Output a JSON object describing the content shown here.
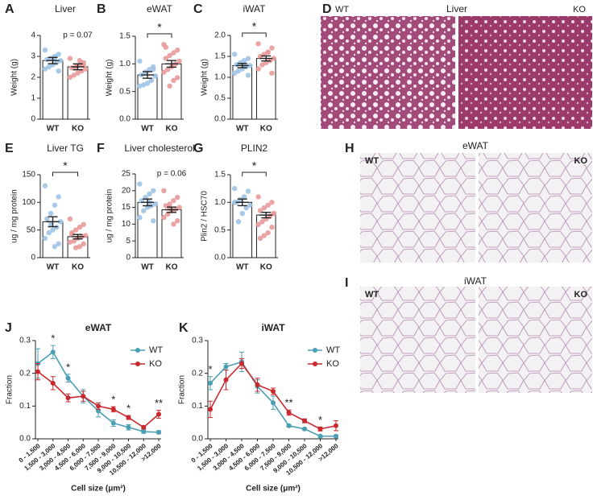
{
  "chart_data": [
    {
      "type": "bar",
      "panel": "A",
      "title": "Liver",
      "ylabel": "Weight (g)",
      "categories": [
        "WT",
        "KO"
      ],
      "values": [
        2.8,
        2.5
      ],
      "errors": [
        0.15,
        0.14
      ],
      "colors": [
        "#9ec3e6",
        "#e89a9a"
      ],
      "points": [
        [
          3.3,
          3.1,
          3.0,
          2.9,
          2.85,
          2.8,
          2.7,
          2.6,
          2.5,
          2.4,
          2.3,
          2.9
        ],
        [
          2.9,
          2.7,
          2.6,
          2.5,
          2.45,
          2.4,
          2.3,
          2.2,
          2.1,
          2.0,
          2.6,
          2.8,
          2.5
        ]
      ],
      "ylim": [
        0,
        4
      ],
      "yticks": [
        0,
        1,
        2,
        3,
        4
      ],
      "annotation": "p = 0.07"
    },
    {
      "type": "bar",
      "panel": "B",
      "title": "eWAT",
      "ylabel": "Weight (g)",
      "categories": [
        "WT",
        "KO"
      ],
      "values": [
        0.8,
        1.0
      ],
      "errors": [
        0.06,
        0.06
      ],
      "colors": [
        "#9ec3e6",
        "#e89a9a"
      ],
      "points": [
        [
          1.05,
          0.95,
          0.9,
          0.85,
          0.8,
          0.78,
          0.7,
          0.65,
          0.62,
          0.6,
          0.9
        ],
        [
          1.35,
          1.25,
          1.2,
          1.15,
          1.1,
          1.05,
          1.0,
          0.95,
          0.9,
          0.85,
          0.75,
          0.7,
          0.6,
          1.3
        ]
      ],
      "ylim": [
        0,
        1.5
      ],
      "yticks": [
        {
          "value": 0,
          "label": "0.0"
        },
        0.5,
        {
          "value": 1,
          "label": "1.0"
        },
        1.5
      ],
      "significance": "*"
    },
    {
      "type": "bar",
      "panel": "C",
      "title": "iWAT",
      "ylabel": "Weight (g)",
      "categories": [
        "WT",
        "KO"
      ],
      "values": [
        1.28,
        1.45
      ],
      "errors": [
        0.05,
        0.06
      ],
      "colors": [
        "#9ec3e6",
        "#e89a9a"
      ],
      "points": [
        [
          1.55,
          1.45,
          1.4,
          1.35,
          1.3,
          1.28,
          1.25,
          1.2,
          1.15,
          1.1,
          1.05,
          1.3
        ],
        [
          1.8,
          1.7,
          1.6,
          1.55,
          1.5,
          1.45,
          1.4,
          1.35,
          1.3,
          1.2,
          1.1,
          1.6
        ]
      ],
      "ylim": [
        0,
        2
      ],
      "yticks": [
        {
          "value": 0,
          "label": "0.0"
        },
        0.5,
        {
          "value": 1,
          "label": "1.0"
        },
        1.5,
        {
          "value": 2,
          "label": "2.0"
        }
      ],
      "significance": "*"
    },
    {
      "type": "bar",
      "panel": "E",
      "title": "Liver TG",
      "ylabel": "ug / mg protein",
      "categories": [
        "WT",
        "KO"
      ],
      "values": [
        65,
        38
      ],
      "errors": [
        9,
        4
      ],
      "colors": [
        "#9ec3e6",
        "#e89a9a"
      ],
      "points": [
        [
          130,
          110,
          95,
          80,
          70,
          65,
          55,
          50,
          45,
          35,
          25,
          20,
          60
        ],
        [
          70,
          60,
          55,
          50,
          45,
          40,
          38,
          35,
          30,
          28,
          25,
          20,
          18,
          42
        ]
      ],
      "ylim": [
        0,
        150
      ],
      "yticks": [
        0,
        50,
        100,
        150
      ],
      "significance": "*"
    },
    {
      "type": "bar",
      "panel": "F",
      "title": "Liver cholesterol",
      "ylabel": "ug / mg protein",
      "categories": [
        "WT",
        "KO"
      ],
      "values": [
        16.5,
        14.3
      ],
      "errors": [
        1.0,
        0.8
      ],
      "colors": [
        "#9ec3e6",
        "#e89a9a"
      ],
      "points": [
        [
          22,
          20,
          19,
          18,
          17,
          16,
          15.5,
          15,
          14,
          12,
          11,
          16.5
        ],
        [
          20,
          18,
          17,
          16,
          15.5,
          15,
          14.5,
          14,
          13,
          12,
          11,
          10,
          15
        ]
      ],
      "ylim": [
        0,
        25
      ],
      "yticks": [
        0,
        5,
        10,
        15,
        20,
        25
      ],
      "annotation": "p = 0.06"
    },
    {
      "type": "bar",
      "panel": "G",
      "title": "PLIN2",
      "ylabel": "Plin2 / HSC70",
      "categories": [
        "WT",
        "KO"
      ],
      "values": [
        1.0,
        0.77
      ],
      "errors": [
        0.06,
        0.05
      ],
      "colors": [
        "#9ec3e6",
        "#e89a9a"
      ],
      "points": [
        [
          1.25,
          1.2,
          1.1,
          1.05,
          1.0,
          0.95,
          0.9,
          0.8,
          0.65,
          1.0
        ],
        [
          1.1,
          1.0,
          0.95,
          0.9,
          0.85,
          0.8,
          0.75,
          0.7,
          0.65,
          0.6,
          0.55,
          0.45,
          0.4,
          0.35,
          0.8
        ]
      ],
      "ylim": [
        0,
        1.5
      ],
      "yticks": [
        {
          "value": 0,
          "label": "0.0"
        },
        0.5,
        {
          "value": 1,
          "label": "1.0"
        },
        1.5
      ],
      "significance": "*"
    },
    {
      "type": "line",
      "panel": "J",
      "title": "eWAT",
      "ylabel": "Fraction",
      "xlabel": "Cell size (μm²)",
      "categories": [
        "0 - 1,500",
        "1,500 - 3,000",
        "3,000 - 4,500",
        "4,500 - 6,000",
        "6,000 - 7,500",
        "7,500 - 9,000",
        "9,000 - 10,500",
        "10,500 - 12,000",
        ">12,000"
      ],
      "series": [
        {
          "name": "WT",
          "color": "#4a9fb5",
          "values": [
            0.23,
            0.265,
            0.185,
            0.13,
            0.085,
            0.048,
            0.035,
            0.022,
            0.02
          ],
          "errors": [
            0.045,
            0.02,
            0.012,
            0.02,
            0.018,
            0.01,
            0.008,
            0.005,
            0.005
          ]
        },
        {
          "name": "KO",
          "color": "#c8282e",
          "values": [
            0.205,
            0.17,
            0.125,
            0.13,
            0.1,
            0.09,
            0.065,
            0.035,
            0.075
          ],
          "errors": [
            0.025,
            0.02,
            0.012,
            0.015,
            0.01,
            0.008,
            0.006,
            0.005,
            0.012
          ]
        }
      ],
      "significance": [
        null,
        "*",
        "*",
        null,
        null,
        "*",
        "*",
        null,
        "**"
      ],
      "ylim": [
        0,
        0.3
      ],
      "yticks": [
        {
          "value": 0,
          "label": "0.0"
        },
        0.1,
        0.2,
        0.3
      ]
    },
    {
      "type": "line",
      "panel": "K",
      "title": "iWAT",
      "ylabel": "Fraction",
      "xlabel": "Cell size (μm²)",
      "categories": [
        "0 - 1,500",
        "1,500 - 3,000",
        "3,000 - 4,500",
        "4,500 - 6,000",
        "6,000 - 7,500",
        "7,500 - 9,000",
        "9,000 - 10,500",
        "10,500 - 12,000",
        ">12,000"
      ],
      "series": [
        {
          "name": "WT",
          "color": "#4a9fb5",
          "values": [
            0.17,
            0.22,
            0.235,
            0.16,
            0.11,
            0.04,
            0.03,
            0.008,
            0.008
          ],
          "errors": [
            0.02,
            0.01,
            0.03,
            0.02,
            0.02,
            0.004,
            0.003,
            0.003,
            0.003
          ]
        },
        {
          "name": "KO",
          "color": "#c8282e",
          "values": [
            0.09,
            0.18,
            0.23,
            0.165,
            0.145,
            0.08,
            0.055,
            0.03,
            0.04
          ],
          "errors": [
            0.025,
            0.03,
            0.015,
            0.02,
            0.01,
            0.008,
            0.006,
            0.006,
            0.015
          ]
        }
      ],
      "significance": [
        "*",
        null,
        null,
        null,
        null,
        "**",
        null,
        "*",
        null
      ],
      "ylim": [
        0,
        0.3
      ],
      "yticks": [
        {
          "value": 0,
          "label": "0.0"
        },
        0.1,
        0.2,
        0.3
      ]
    }
  ],
  "micrographs": [
    {
      "panel": "D",
      "title": "Liver",
      "left": "WT",
      "right": "KO"
    },
    {
      "panel": "H",
      "title": "eWAT",
      "left": "WT",
      "right": "KO"
    },
    {
      "panel": "I",
      "title": "iWAT",
      "left": "WT",
      "right": "KO"
    }
  ]
}
